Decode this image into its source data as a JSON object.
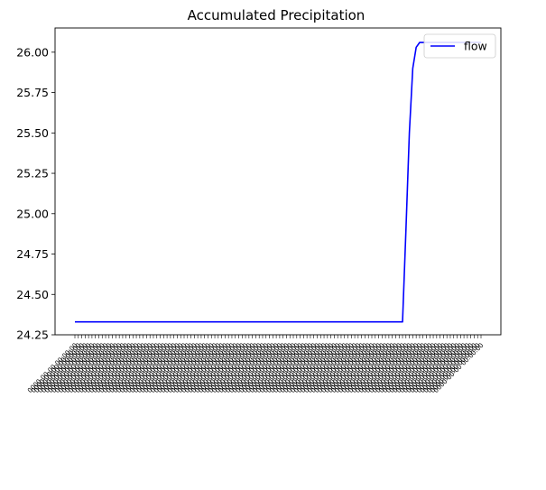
{
  "chart_data": {
    "type": "line",
    "title": "Accumulated Precipitation",
    "xlabel": "",
    "ylabel": "",
    "ylim": [
      24.25,
      26.15
    ],
    "yticks": [
      "24.25",
      "24.50",
      "24.75",
      "25.00",
      "25.25",
      "25.50",
      "25.75",
      "26.00"
    ],
    "x_count": 120,
    "legend": {
      "position": "upper-right",
      "entries": [
        "flow"
      ]
    },
    "grid": false,
    "series": [
      {
        "name": "flow",
        "color": "#0000ff",
        "flat_value": 24.33,
        "flat_count": 96,
        "values_tail": [
          24.33,
          24.9,
          25.5,
          25.9,
          26.03,
          26.06,
          26.06,
          26.06,
          26.06,
          26.06,
          26.06,
          26.06,
          26.06,
          26.06,
          26.06,
          26.06,
          26.06,
          26.06,
          26.06,
          26.06,
          26.06,
          26.06,
          26.06,
          26.06
        ]
      }
    ]
  }
}
